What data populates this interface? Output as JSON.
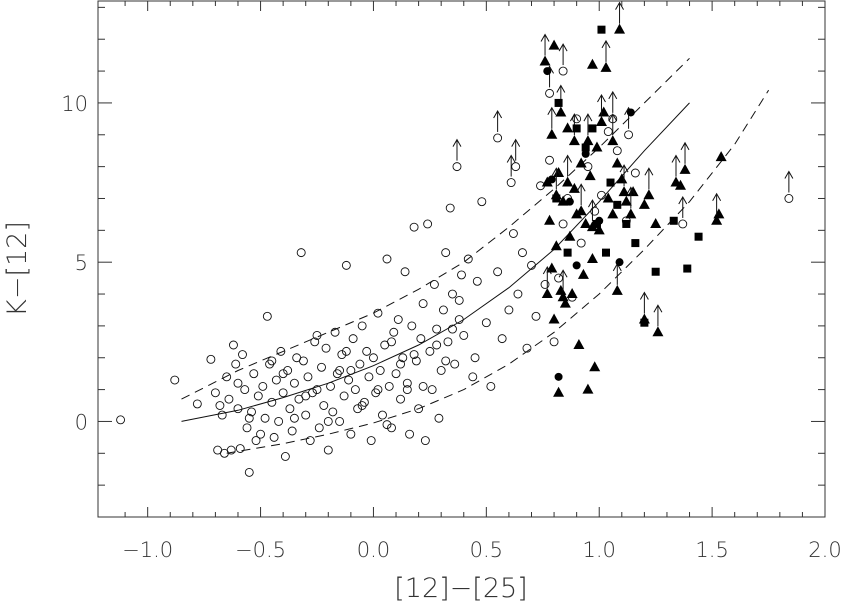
{
  "chart_data": {
    "type": "scatter",
    "title": "",
    "xlabel": "[12]−[25]",
    "ylabel": "K−[12]",
    "xlim": [
      -1.22,
      2.0
    ],
    "ylim": [
      -3.0,
      13.2
    ],
    "xticks": [
      -1.0,
      -0.5,
      0.0,
      0.5,
      1.0,
      1.5,
      2.0
    ],
    "xtick_labels": [
      "−1.0",
      "−0.5",
      "0.0",
      "0.5",
      "1.0",
      "1.5",
      "2.0"
    ],
    "yticks": [
      0,
      5,
      10
    ],
    "ytick_labels": [
      "0",
      "5",
      "10"
    ],
    "grid": false,
    "legend": "none",
    "series": [
      {
        "marker": "open-circle",
        "points": [
          [
            -1.12,
            0.05
          ],
          [
            -0.88,
            1.3
          ],
          [
            -0.78,
            0.55
          ],
          [
            -0.72,
            1.95
          ],
          [
            -0.7,
            0.9
          ],
          [
            -0.69,
            -0.9
          ],
          [
            -0.67,
            0.2
          ],
          [
            -0.66,
            -1.0
          ],
          [
            -0.65,
            1.4
          ],
          [
            -0.64,
            0.7
          ],
          [
            -0.63,
            -0.9
          ],
          [
            -0.62,
            2.4
          ],
          [
            -0.61,
            1.8
          ],
          [
            -0.6,
            0.4
          ],
          [
            -0.59,
            -0.85
          ],
          [
            -0.58,
            2.1
          ],
          [
            -0.57,
            1.0
          ],
          [
            -0.56,
            -0.2
          ],
          [
            -0.55,
            -1.6
          ],
          [
            -0.54,
            0.3
          ],
          [
            -0.53,
            1.5
          ],
          [
            -0.52,
            -0.6
          ],
          [
            -0.51,
            0.8
          ],
          [
            -0.5,
            -0.4
          ],
          [
            -0.49,
            1.1
          ],
          [
            -0.48,
            0.1
          ],
          [
            -0.47,
            3.3
          ],
          [
            -0.46,
            1.8
          ],
          [
            -0.45,
            0.6
          ],
          [
            -0.44,
            -0.5
          ],
          [
            -0.43,
            1.3
          ],
          [
            -0.42,
            0.0
          ],
          [
            -0.41,
            2.2
          ],
          [
            -0.4,
            0.9
          ],
          [
            -0.39,
            -1.1
          ],
          [
            -0.38,
            1.6
          ],
          [
            -0.37,
            0.4
          ],
          [
            -0.36,
            -0.3
          ],
          [
            -0.35,
            1.2
          ],
          [
            -0.34,
            2.0
          ],
          [
            -0.33,
            0.7
          ],
          [
            -0.32,
            5.3
          ],
          [
            -0.31,
            1.9
          ],
          [
            -0.3,
            0.2
          ],
          [
            -0.29,
            1.4
          ],
          [
            -0.28,
            -0.6
          ],
          [
            -0.27,
            0.9
          ],
          [
            -0.26,
            2.5
          ],
          [
            -0.25,
            1.0
          ],
          [
            -0.24,
            -0.2
          ],
          [
            -0.23,
            1.7
          ],
          [
            -0.22,
            0.5
          ],
          [
            -0.21,
            2.3
          ],
          [
            -0.2,
            -0.9
          ],
          [
            -0.19,
            1.1
          ],
          [
            -0.18,
            0.3
          ],
          [
            -0.17,
            2.8
          ],
          [
            -0.16,
            1.5
          ],
          [
            -0.15,
            0.0
          ],
          [
            -0.14,
            2.1
          ],
          [
            -0.13,
            0.8
          ],
          [
            -0.12,
            4.9
          ],
          [
            -0.11,
            1.3
          ],
          [
            -0.1,
            -0.4
          ],
          [
            -0.09,
            2.6
          ],
          [
            -0.08,
            1.0
          ],
          [
            -0.07,
            0.4
          ],
          [
            -0.06,
            1.8
          ],
          [
            -0.05,
            3.0
          ],
          [
            -0.04,
            0.6
          ],
          [
            -0.03,
            2.2
          ],
          [
            -0.02,
            1.4
          ],
          [
            -0.01,
            -0.6
          ],
          [
            0.0,
            2.0
          ],
          [
            0.01,
            0.9
          ],
          [
            0.02,
            3.4
          ],
          [
            0.03,
            1.6
          ],
          [
            0.04,
            0.2
          ],
          [
            0.05,
            2.4
          ],
          [
            0.06,
            5.1
          ],
          [
            0.07,
            1.1
          ],
          [
            0.08,
            -0.2
          ],
          [
            0.09,
            2.8
          ],
          [
            0.1,
            1.5
          ],
          [
            0.11,
            3.2
          ],
          [
            0.12,
            0.7
          ],
          [
            0.13,
            2.0
          ],
          [
            0.14,
            4.7
          ],
          [
            0.15,
            1.2
          ],
          [
            0.16,
            -0.4
          ],
          [
            0.17,
            3.0
          ],
          [
            0.18,
            6.1
          ],
          [
            0.19,
            1.9
          ],
          [
            0.2,
            0.4
          ],
          [
            0.21,
            2.6
          ],
          [
            0.22,
            3.7
          ],
          [
            0.23,
            -0.6
          ],
          [
            0.24,
            6.2
          ],
          [
            0.25,
            2.2
          ],
          [
            0.26,
            1.0
          ],
          [
            0.27,
            4.3
          ],
          [
            0.28,
            2.9
          ],
          [
            0.29,
            0.1
          ],
          [
            0.3,
            1.6
          ],
          [
            0.31,
            3.5
          ],
          [
            0.32,
            5.3
          ],
          [
            0.33,
            2.5
          ],
          [
            0.34,
            6.7
          ],
          [
            0.35,
            4.0
          ],
          [
            0.36,
            1.8
          ],
          [
            0.38,
            3.2
          ],
          [
            0.39,
            4.6
          ],
          [
            0.4,
            2.7
          ],
          [
            0.42,
            5.1
          ],
          [
            0.44,
            1.4
          ],
          [
            0.46,
            4.4
          ],
          [
            0.48,
            6.9
          ],
          [
            0.5,
            3.1
          ],
          [
            0.52,
            1.1
          ],
          [
            0.55,
            4.7
          ],
          [
            0.57,
            2.6
          ],
          [
            0.6,
            3.5
          ],
          [
            0.62,
            5.9
          ],
          [
            0.64,
            4.0
          ],
          [
            0.66,
            5.3
          ],
          [
            0.68,
            2.3
          ],
          [
            0.7,
            4.9
          ],
          [
            0.72,
            3.3
          ],
          [
            0.74,
            7.4
          ],
          [
            0.76,
            4.3
          ],
          [
            0.78,
            8.2
          ],
          [
            0.8,
            2.5
          ],
          [
            0.82,
            4.5
          ],
          [
            0.84,
            6.2
          ],
          [
            0.86,
            7.0
          ],
          [
            0.88,
            3.9
          ],
          [
            0.9,
            9.5
          ],
          [
            0.92,
            5.6
          ],
          [
            0.95,
            8.0
          ],
          [
            0.98,
            6.6
          ],
          [
            1.01,
            7.1
          ],
          [
            1.04,
            9.1
          ],
          [
            1.08,
            8.5
          ],
          [
            1.12,
            6.3
          ],
          [
            1.16,
            7.8
          ],
          [
            -0.6,
            1.2
          ],
          [
            -0.45,
            1.9
          ],
          [
            -0.3,
            0.8
          ],
          [
            -0.15,
            1.6
          ],
          [
            0.02,
            1.0
          ],
          [
            0.18,
            2.1
          ],
          [
            0.35,
            2.9
          ],
          [
            -0.55,
            0.1
          ],
          [
            -0.4,
            1.5
          ],
          [
            -0.2,
            0.0
          ],
          [
            -0.05,
            0.5
          ],
          [
            0.12,
            1.8
          ],
          [
            0.28,
            2.4
          ],
          [
            -0.68,
            0.5
          ],
          [
            -0.35,
            0.1
          ],
          [
            -0.1,
            1.6
          ],
          [
            0.06,
            -0.1
          ],
          [
            0.22,
            1.1
          ],
          [
            0.38,
            3.8
          ],
          [
            0.45,
            2.0
          ],
          [
            -0.25,
            2.7
          ],
          [
            -0.12,
            2.2
          ],
          [
            0.08,
            2.5
          ],
          [
            0.15,
            1.0
          ],
          [
            0.32,
            1.9
          ]
        ]
      },
      {
        "marker": "open-circle-lower-limit",
        "points": [
          [
            0.37,
            8.0
          ],
          [
            0.55,
            8.9
          ],
          [
            0.61,
            7.5
          ],
          [
            0.63,
            8.0
          ],
          [
            0.78,
            10.3
          ],
          [
            0.84,
            11.0
          ],
          [
            1.06,
            9.5
          ],
          [
            1.13,
            9.0
          ],
          [
            1.37,
            6.2
          ],
          [
            1.84,
            7.0
          ]
        ]
      },
      {
        "marker": "filled-triangle",
        "points": [
          [
            0.77,
            7.5
          ],
          [
            0.78,
            6.3
          ],
          [
            0.79,
            4.8
          ],
          [
            0.8,
            3.2
          ],
          [
            0.81,
            5.5
          ],
          [
            0.82,
            7.8
          ],
          [
            0.83,
            4.1
          ],
          [
            0.84,
            6.9
          ],
          [
            0.85,
            3.7
          ],
          [
            0.86,
            9.2
          ],
          [
            0.87,
            5.8
          ],
          [
            0.88,
            4.0
          ],
          [
            0.89,
            7.3
          ],
          [
            0.9,
            6.5
          ],
          [
            0.91,
            2.4
          ],
          [
            0.92,
            8.1
          ],
          [
            0.93,
            4.6
          ],
          [
            0.94,
            6.2
          ],
          [
            0.95,
            1.0
          ],
          [
            0.96,
            7.7
          ],
          [
            0.97,
            5.1
          ],
          [
            0.98,
            1.7
          ],
          [
            0.99,
            8.6
          ],
          [
            1.0,
            6.0
          ],
          [
            1.02,
            9.7
          ],
          [
            1.04,
            7.0
          ],
          [
            1.06,
            6.5
          ],
          [
            1.08,
            8.1
          ],
          [
            1.1,
            7.6
          ],
          [
            1.12,
            6.9
          ],
          [
            1.15,
            7.2
          ],
          [
            1.2,
            6.8
          ],
          [
            1.25,
            6.2
          ],
          [
            1.36,
            7.4
          ],
          [
            1.53,
            6.5
          ],
          [
            1.54,
            8.3
          ],
          [
            0.82,
            0.9
          ],
          [
            0.8,
            11.8
          ],
          [
            0.97,
            11.2
          ]
        ]
      },
      {
        "marker": "filled-triangle-lower-limit",
        "points": [
          [
            0.76,
            11.3
          ],
          [
            0.79,
            9.0
          ],
          [
            0.81,
            7.1
          ],
          [
            0.83,
            9.7
          ],
          [
            0.86,
            7.5
          ],
          [
            0.89,
            8.8
          ],
          [
            0.92,
            6.6
          ],
          [
            0.95,
            8.8
          ],
          [
            0.97,
            6.1
          ],
          [
            1.01,
            9.4
          ],
          [
            1.03,
            11.1
          ],
          [
            1.06,
            8.8
          ],
          [
            1.09,
            12.3
          ],
          [
            1.11,
            7.2
          ],
          [
            1.14,
            6.5
          ],
          [
            1.22,
            7.1
          ],
          [
            1.26,
            2.8
          ],
          [
            1.34,
            7.5
          ],
          [
            1.38,
            7.9
          ],
          [
            1.52,
            6.3
          ],
          [
            1.08,
            4.1
          ],
          [
            1.2,
            3.2
          ],
          [
            0.77,
            4.0
          ],
          [
            0.84,
            3.9
          ]
        ]
      },
      {
        "marker": "filled-square",
        "points": [
          [
            0.82,
            10.0
          ],
          [
            0.9,
            9.2
          ],
          [
            0.94,
            8.6
          ],
          [
            0.99,
            6.2
          ],
          [
            1.01,
            12.3
          ],
          [
            1.05,
            7.5
          ],
          [
            1.08,
            6.8
          ],
          [
            1.12,
            6.2
          ],
          [
            1.16,
            5.6
          ],
          [
            1.2,
            3.1
          ],
          [
            1.25,
            4.7
          ],
          [
            1.33,
            6.3
          ],
          [
            1.39,
            4.8
          ],
          [
            1.44,
            5.8
          ],
          [
            1.03,
            5.3
          ],
          [
            0.86,
            5.3
          ],
          [
            0.81,
            7.0
          ],
          [
            0.97,
            9.2
          ]
        ]
      },
      {
        "marker": "filled-circle",
        "points": [
          [
            0.77,
            11.0
          ],
          [
            0.82,
            1.4
          ],
          [
            0.87,
            6.9
          ],
          [
            0.9,
            4.9
          ],
          [
            0.94,
            8.4
          ],
          [
            1.09,
            5.0
          ],
          [
            1.14,
            9.7
          ],
          [
            0.79,
            7.6
          ],
          [
            1.0,
            6.3
          ]
        ]
      }
    ],
    "curves": [
      {
        "style": "solid",
        "x": [
          -0.85,
          -0.6,
          -0.4,
          -0.2,
          0.0,
          0.2,
          0.4,
          0.6,
          0.8,
          1.0,
          1.2,
          1.4
        ],
        "y": [
          0.0,
          0.35,
          0.75,
          1.2,
          1.75,
          2.4,
          3.2,
          4.2,
          5.4,
          6.9,
          8.5,
          10.0
        ]
      },
      {
        "style": "dashed",
        "x": [
          -0.85,
          -0.6,
          -0.4,
          -0.2,
          0.0,
          0.2,
          0.4,
          0.6,
          0.8,
          1.0,
          1.2,
          1.4
        ],
        "y": [
          0.7,
          1.6,
          2.2,
          2.8,
          3.4,
          4.15,
          5.0,
          6.1,
          7.3,
          8.6,
          10.0,
          11.4
        ]
      },
      {
        "style": "dashed",
        "x": [
          -0.65,
          -0.4,
          -0.2,
          0.0,
          0.2,
          0.4,
          0.6,
          0.8,
          1.0,
          1.2,
          1.4,
          1.6,
          1.75
        ],
        "y": [
          -1.0,
          -0.7,
          -0.4,
          -0.05,
          0.4,
          1.0,
          1.8,
          2.8,
          4.0,
          5.4,
          6.9,
          8.7,
          10.4
        ]
      }
    ]
  }
}
